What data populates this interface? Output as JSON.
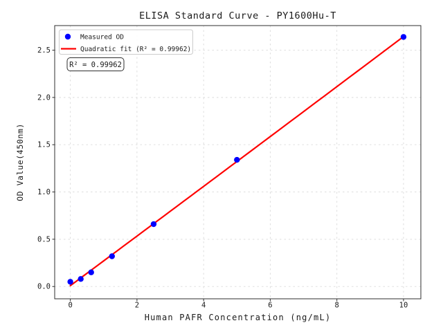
{
  "chart_data": {
    "type": "scatter",
    "title": "ELISA Standard Curve - PY1600Hu-T",
    "xlabel": "Human PAFR Concentration (ng/mL)",
    "ylabel": "OD Value(450nm)",
    "x": [
      0,
      0.3125,
      0.625,
      1.25,
      2.5,
      5,
      10
    ],
    "series": [
      {
        "name": "Measured OD",
        "type": "scatter",
        "marker": "circle",
        "color": "#0000ff",
        "values": [
          0.05,
          0.08,
          0.15,
          0.32,
          0.66,
          1.34,
          2.64
        ]
      },
      {
        "name": "Quadratic fit (R² = 0.99962)",
        "type": "line",
        "color": "#ff0000",
        "fit": "quadratic",
        "x_range": [
          0,
          10
        ]
      }
    ],
    "annotation": "R² = 0.99962",
    "r_squared": "0.99962",
    "xticks": {
      "values": [
        0,
        2,
        4,
        6,
        8,
        10
      ],
      "labels": [
        "0",
        "2",
        "4",
        "6",
        "8",
        "10"
      ]
    },
    "yticks": {
      "values": [
        0,
        0.5,
        1.0,
        1.5,
        2.0,
        2.5
      ],
      "labels": [
        "0.0",
        "0.5",
        "1.0",
        "1.5",
        "2.0",
        "2.5"
      ]
    },
    "xlim": [
      -0.47,
      10.52
    ],
    "ylim": [
      -0.13,
      2.76
    ],
    "grid": true,
    "grid_style": "dashed",
    "legend_position": "upper left",
    "colors": {
      "scatter": "#0000ff",
      "fit_line": "#ff0000",
      "grid": "#d9d9d9",
      "spine": "#2e2e2e",
      "text": "#1a1a1a",
      "legend_border": "#cccccc",
      "background": "#ffffff"
    }
  }
}
